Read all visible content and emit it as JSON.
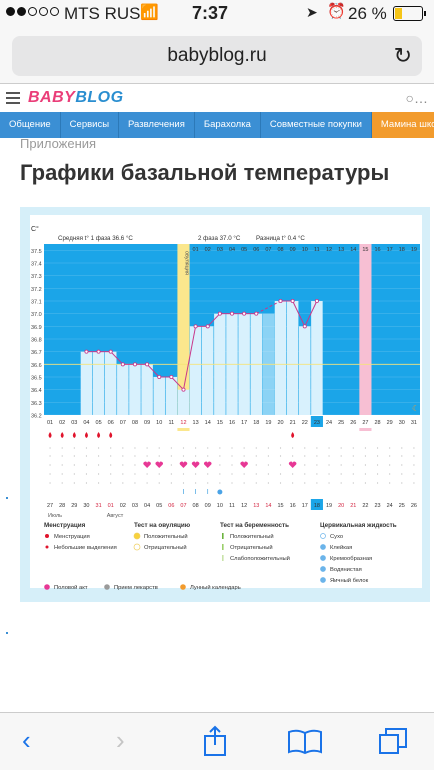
{
  "status": {
    "carrier": "MTS RUS",
    "time": "7:37",
    "battery": "26 %",
    "signal_bars": 2,
    "battery_level": 0.26
  },
  "browser": {
    "url": "babyblog.ru"
  },
  "site": {
    "logo_a": "BABY",
    "logo_b": "BLOG"
  },
  "nav": [
    "Общение",
    "Сервисы",
    "Развлечения",
    "Барахолка",
    "Совместные покупки",
    "Мамина школа"
  ],
  "breadcrumb": "Приложения",
  "page_title": "Графики базальной температуры",
  "chart_data": {
    "type": "line",
    "ylabel": "C°",
    "y_ticks": [
      "37.5",
      "37.4",
      "37.3",
      "37.2",
      "37.1",
      "37.0",
      "36.9",
      "36.8",
      "36.7",
      "36.6",
      "36.5",
      "36.4",
      "36.3",
      "36.2"
    ],
    "ylim": [
      36.2,
      37.55
    ],
    "avg_phase1": "Средняя t° 1 фаза 36.6 °C",
    "ovulation_label": "овуляция",
    "avg_phase2": "2 фаза 37.0 °C",
    "difference": "Разница t° 0.4 °C",
    "cycle_days_top": [
      "01",
      "02",
      "03",
      "04",
      "05",
      "06",
      "07",
      "08",
      "09",
      "10",
      "11",
      "12",
      "01",
      "02",
      "03",
      "04",
      "05",
      "06",
      "07",
      "08",
      "09",
      "10",
      "11",
      "12",
      "13",
      "14",
      "15",
      "16",
      "17",
      "18",
      "19"
    ],
    "cycle_days_bottom": [
      "01",
      "02",
      "03",
      "04",
      "05",
      "06",
      "07",
      "08",
      "09",
      "10",
      "11",
      "12",
      "13",
      "14",
      "15",
      "16",
      "17",
      "18",
      "19",
      "20",
      "21",
      "22",
      "23",
      "24",
      "25",
      "26",
      "27",
      "28",
      "29",
      "30",
      "31"
    ],
    "dates_top": [
      "01",
      "02",
      "03",
      "04",
      "05",
      "06",
      "07",
      "08",
      "09",
      "10",
      "11",
      "12",
      "13",
      "14",
      "15",
      "16",
      "17",
      "18",
      "19",
      "20",
      "21",
      "22",
      "23",
      "24",
      "25",
      "26",
      "27",
      "28",
      "29",
      "30",
      "31"
    ],
    "dates_bottom": [
      "27",
      "28",
      "29",
      "30",
      "31",
      "01",
      "02",
      "03",
      "04",
      "05",
      "06",
      "07",
      "08",
      "09",
      "10",
      "11",
      "12",
      "13",
      "14",
      "15",
      "16",
      "17",
      "18",
      "19",
      "20",
      "21",
      "22",
      "23",
      "24",
      "25",
      "26"
    ],
    "month_labels": [
      "Июль",
      "Август"
    ],
    "ovulation_index": 11,
    "today_index": 22,
    "period_start_index": 26,
    "red_date_indices": [
      4,
      5,
      10,
      11,
      17,
      18,
      24,
      25
    ],
    "values": [
      null,
      null,
      null,
      36.7,
      36.7,
      36.7,
      36.6,
      36.6,
      36.6,
      36.5,
      36.5,
      36.4,
      36.9,
      36.9,
      37.0,
      37.0,
      37.0,
      37.0,
      null,
      37.1,
      37.1,
      36.9,
      37.1,
      null,
      null,
      null,
      null,
      null,
      null,
      null,
      null
    ],
    "skipped_segments": [
      [
        17,
        19
      ]
    ],
    "menstruation_indices": [
      0,
      1,
      2,
      3,
      4,
      5,
      20
    ],
    "intercourse_indices": [
      8,
      9,
      11,
      12,
      13,
      16,
      20
    ],
    "mucus_indices": [
      11,
      12,
      13
    ],
    "mucus_drop_index": 14,
    "legend": {
      "menstruation": {
        "title": "Менструация",
        "items": [
          "Менструация",
          "Небольшие выделения"
        ]
      },
      "ovulation_test": {
        "title": "Тест на овуляцию",
        "items": [
          "Положительный",
          "Отрицательный"
        ]
      },
      "pregnancy_test": {
        "title": "Тест на беременность",
        "items": [
          "Положительный",
          "Отрицательный",
          "Слабоположительный"
        ]
      },
      "cervical": {
        "title": "Цервикальная жидкость",
        "items": [
          "Сухо",
          "Клейкая",
          "Кремообразная",
          "Водянистая",
          "Яичный белок"
        ]
      },
      "bottom": [
        "Половой акт",
        "Прием лекарств",
        "Лунный календарь"
      ]
    },
    "colors": {
      "chart_bg": "#1ba5e8",
      "bar": "#d8f1fd",
      "line": "#c8378a",
      "ovulation": "#fbe78d",
      "period": "#f7bfd3",
      "grid_text": "#444444",
      "red_text": "#d21f3c",
      "marker_pink": "#e73895",
      "marker_red": "#e0142c",
      "mucus_blue": "#3a9ee0"
    }
  }
}
